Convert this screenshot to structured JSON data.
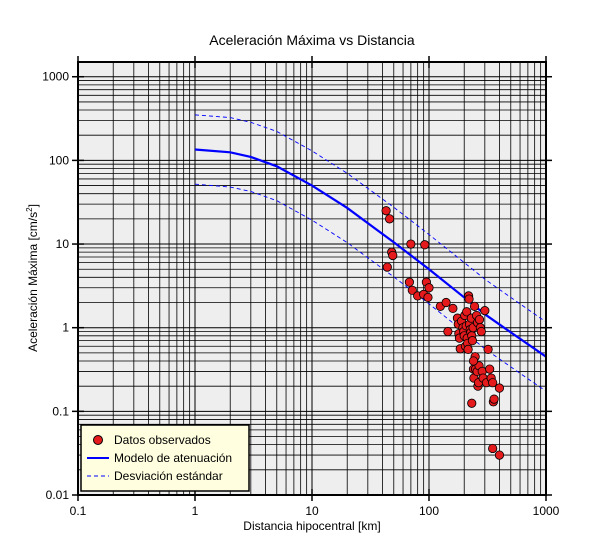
{
  "chart_data": {
    "type": "scatter",
    "title": "Aceleración Máxima vs Distancia",
    "xlabel": "Distancia hipocentral [km]",
    "ylabel_main": "Aceleración Máxima [cm/s",
    "ylabel_sup": "2",
    "ylabel_end": "]",
    "x_scale": "log",
    "y_scale": "log",
    "xlim": [
      0.1,
      1000
    ],
    "ylim": [
      0.01,
      1500
    ],
    "grid": true,
    "legend_position": "bottom-left",
    "x_ticks": [
      {
        "value": 0.1,
        "label": "0.1"
      },
      {
        "value": 1,
        "label": "1"
      },
      {
        "value": 10,
        "label": "10"
      },
      {
        "value": 100,
        "label": "100"
      },
      {
        "value": 1000,
        "label": "1000"
      }
    ],
    "y_ticks": [
      {
        "value": 0.01,
        "label": "0.01"
      },
      {
        "value": 0.1,
        "label": "0.1"
      },
      {
        "value": 1,
        "label": "1"
      },
      {
        "value": 10,
        "label": "10"
      },
      {
        "value": 100,
        "label": "100"
      },
      {
        "value": 1000,
        "label": "1000"
      }
    ],
    "series": [
      {
        "name": "Datos observados",
        "kind": "points",
        "color": "#e41a1c",
        "points": [
          [
            43,
            25
          ],
          [
            46,
            20
          ],
          [
            48,
            8
          ],
          [
            49,
            7.3
          ],
          [
            44,
            5.3
          ],
          [
            70,
            10
          ],
          [
            92,
            9.8
          ],
          [
            68,
            3.5
          ],
          [
            72,
            2.8
          ],
          [
            80,
            2.4
          ],
          [
            90,
            2.5
          ],
          [
            95,
            3.5
          ],
          [
            100,
            3
          ],
          [
            98,
            2.3
          ],
          [
            125,
            1.8
          ],
          [
            140,
            2
          ],
          [
            145,
            0.9
          ],
          [
            160,
            1.7
          ],
          [
            175,
            1.3
          ],
          [
            178,
            1.1
          ],
          [
            180,
            0.85
          ],
          [
            182,
            0.75
          ],
          [
            185,
            0.56
          ],
          [
            190,
            1.2
          ],
          [
            195,
            1.0
          ],
          [
            198,
            0.9
          ],
          [
            200,
            0.8
          ],
          [
            202,
            1.4
          ],
          [
            205,
            0.6
          ],
          [
            208,
            1.05
          ],
          [
            210,
            1.55
          ],
          [
            212,
            0.75
          ],
          [
            214,
            0.65
          ],
          [
            216,
            0.55
          ],
          [
            218,
            2.4
          ],
          [
            220,
            2.2
          ],
          [
            222,
            1.1
          ],
          [
            225,
            0.95
          ],
          [
            228,
            0.88
          ],
          [
            230,
            1.3
          ],
          [
            232,
            0.8
          ],
          [
            235,
            0.7
          ],
          [
            238,
            1.0
          ],
          [
            240,
            0.32
          ],
          [
            242,
            0.25
          ],
          [
            245,
            1.8
          ],
          [
            248,
            0.45
          ],
          [
            250,
            0.32
          ],
          [
            255,
            1.4
          ],
          [
            258,
            0.3
          ],
          [
            260,
            1.15
          ],
          [
            262,
            0.2
          ],
          [
            265,
            0.22
          ],
          [
            268,
            0.35
          ],
          [
            270,
            1.25
          ],
          [
            275,
            1.0
          ],
          [
            280,
            0.9
          ],
          [
            285,
            0.3
          ],
          [
            290,
            0.25
          ],
          [
            300,
            1.6
          ],
          [
            310,
            0.22
          ],
          [
            320,
            0.55
          ],
          [
            330,
            0.32
          ],
          [
            340,
            0.25
          ],
          [
            350,
            0.22
          ],
          [
            355,
            0.13
          ],
          [
            360,
            0.14
          ],
          [
            400,
            0.19
          ],
          [
            232,
            0.125
          ],
          [
            240,
            0.4
          ],
          [
            350,
            0.036
          ],
          [
            400,
            0.03
          ]
        ]
      },
      {
        "name": "Modelo de atenuación",
        "kind": "line",
        "color": "#0000ff",
        "points": [
          [
            1,
            135
          ],
          [
            2,
            125
          ],
          [
            3,
            110
          ],
          [
            5,
            85
          ],
          [
            10,
            50
          ],
          [
            20,
            27
          ],
          [
            50,
            10.5
          ],
          [
            100,
            5
          ],
          [
            200,
            2.3
          ],
          [
            300,
            1.45
          ],
          [
            500,
            0.88
          ],
          [
            1000,
            0.45
          ]
        ]
      },
      {
        "name": "Desviación estándar",
        "kind": "dashed-line",
        "color": "#0000ff",
        "upper": [
          [
            1,
            350
          ],
          [
            2,
            325
          ],
          [
            3,
            285
          ],
          [
            5,
            222
          ],
          [
            10,
            130
          ],
          [
            20,
            70
          ],
          [
            50,
            27.5
          ],
          [
            100,
            13
          ],
          [
            200,
            6
          ],
          [
            300,
            3.8
          ],
          [
            500,
            2.3
          ],
          [
            1000,
            1.17
          ]
        ],
        "lower": [
          [
            1,
            52
          ],
          [
            2,
            48
          ],
          [
            3,
            42.5
          ],
          [
            5,
            33
          ],
          [
            10,
            19.3
          ],
          [
            20,
            10.4
          ],
          [
            50,
            4.05
          ],
          [
            100,
            1.93
          ],
          [
            200,
            0.89
          ],
          [
            300,
            0.56
          ],
          [
            500,
            0.34
          ],
          [
            1000,
            0.174
          ]
        ]
      }
    ]
  },
  "colors": {
    "plot_background": "#eeeeee",
    "legend_background": "#ffffe0",
    "grid": "#000000"
  }
}
